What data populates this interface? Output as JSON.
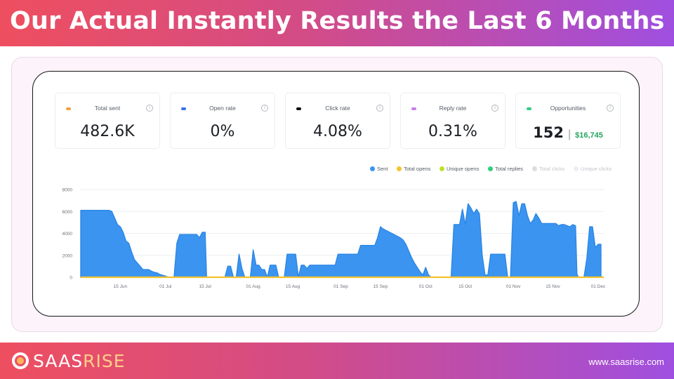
{
  "header": {
    "title": "Our Actual Instantly Results the Last 6 Months"
  },
  "cards": [
    {
      "label": "Total sent",
      "value": "482.6K",
      "dot_color": "#f0a24a",
      "icon": "info-icon"
    },
    {
      "label": "Open rate",
      "value": "0%",
      "dot_color": "#3b6ff0",
      "icon": "info-icon"
    },
    {
      "label": "Click rate",
      "value": "4.08%",
      "dot_color": "#111111",
      "icon": "info-icon"
    },
    {
      "label": "Reply rate",
      "value": "0.31%",
      "dot_color": "#c77de8",
      "icon": "info-icon"
    },
    {
      "label": "Opportunities",
      "value": "152",
      "separator": "|",
      "amount": "$16,745",
      "dot_color": "#2fcf7e",
      "icon": "info-icon"
    }
  ],
  "info_glyph": "i",
  "chart_data": {
    "type": "area",
    "legend": [
      {
        "name": "Sent",
        "color": "#3b95f0"
      },
      {
        "name": "Total opens",
        "color": "#f5c32c"
      },
      {
        "name": "Unique opens",
        "color": "#b8e22e"
      },
      {
        "name": "Total replies",
        "color": "#2fcf7e"
      },
      {
        "name": "Total clicks",
        "color": "#dcdde0"
      },
      {
        "name": "Unique clicks",
        "color": "#eceef0"
      }
    ],
    "legend_position": "top-right",
    "yticks": [
      "0",
      "2000",
      "4000",
      "6000",
      "8000"
    ],
    "ylim": [
      0,
      8000
    ],
    "xticks": [
      {
        "label": "15 Jun",
        "day": 14
      },
      {
        "label": "01 Jul",
        "day": 30
      },
      {
        "label": "15 Jul",
        "day": 44
      },
      {
        "label": "01 Aug",
        "day": 61
      },
      {
        "label": "15 Aug",
        "day": 75
      },
      {
        "label": "01 Sep",
        "day": 92
      },
      {
        "label": "15 Sep",
        "day": 106
      },
      {
        "label": "01 Oct",
        "day": 122
      },
      {
        "label": "15 Oct",
        "day": 136
      },
      {
        "label": "01 Nov",
        "day": 153
      },
      {
        "label": "15 Nov",
        "day": 167
      },
      {
        "label": "01 Dec",
        "day": 183
      }
    ],
    "xlim": [
      0,
      185
    ],
    "grid": true,
    "series": [
      {
        "name": "Sent",
        "points": [
          [
            0,
            6100
          ],
          [
            10,
            6100
          ],
          [
            11,
            6000
          ],
          [
            13,
            4800
          ],
          [
            14,
            4600
          ],
          [
            15,
            4100
          ],
          [
            16,
            3300
          ],
          [
            17,
            3100
          ],
          [
            18,
            2300
          ],
          [
            19,
            1600
          ],
          [
            20,
            1300
          ],
          [
            21,
            1000
          ],
          [
            22,
            700
          ],
          [
            23,
            700
          ],
          [
            24,
            700
          ],
          [
            25,
            550
          ],
          [
            26,
            450
          ],
          [
            27,
            400
          ],
          [
            28,
            250
          ],
          [
            30,
            100
          ],
          [
            31,
            0
          ],
          [
            32,
            0
          ],
          [
            33,
            0
          ],
          [
            34,
            3100
          ],
          [
            35,
            3900
          ],
          [
            41,
            3900
          ],
          [
            42,
            3600
          ],
          [
            43,
            4100
          ],
          [
            44,
            4100
          ],
          [
            44.5,
            0
          ],
          [
            51,
            0
          ],
          [
            52,
            1000
          ],
          [
            53,
            1000
          ],
          [
            54,
            0
          ],
          [
            55,
            0
          ],
          [
            56,
            2100
          ],
          [
            57,
            800
          ],
          [
            58,
            0
          ],
          [
            59,
            0
          ],
          [
            60,
            0
          ],
          [
            61,
            2500
          ],
          [
            62,
            1100
          ],
          [
            63,
            1100
          ],
          [
            64,
            700
          ],
          [
            65,
            700
          ],
          [
            66,
            0
          ],
          [
            67,
            1100
          ],
          [
            68,
            1100
          ],
          [
            69,
            1100
          ],
          [
            70,
            0
          ],
          [
            71,
            0
          ],
          [
            72,
            0
          ],
          [
            73,
            2100
          ],
          [
            75,
            2100
          ],
          [
            76,
            2100
          ],
          [
            77,
            0
          ],
          [
            78,
            1100
          ],
          [
            79,
            1100
          ],
          [
            80,
            800
          ],
          [
            81,
            1100
          ],
          [
            89,
            1100
          ],
          [
            90,
            1100
          ],
          [
            91,
            2100
          ],
          [
            92,
            2100
          ],
          [
            98,
            2100
          ],
          [
            99,
            2900
          ],
          [
            104,
            2900
          ],
          [
            105,
            3600
          ],
          [
            106,
            4600
          ],
          [
            107,
            4400
          ],
          [
            110,
            4000
          ],
          [
            113,
            3600
          ],
          [
            114,
            3400
          ],
          [
            115,
            3000
          ],
          [
            116,
            2400
          ],
          [
            117,
            1800
          ],
          [
            118,
            1300
          ],
          [
            119,
            900
          ],
          [
            120,
            500
          ],
          [
            121,
            200
          ],
          [
            122,
            900
          ],
          [
            123,
            200
          ],
          [
            124,
            0
          ],
          [
            131,
            0
          ],
          [
            132,
            4800
          ],
          [
            133,
            4800
          ],
          [
            134,
            4800
          ],
          [
            135,
            6200
          ],
          [
            136,
            4800
          ],
          [
            137,
            6700
          ],
          [
            138,
            6300
          ],
          [
            139,
            5800
          ],
          [
            140,
            6200
          ],
          [
            141,
            5800
          ],
          [
            142,
            2000
          ],
          [
            143,
            200
          ],
          [
            144,
            200
          ],
          [
            145,
            2100
          ],
          [
            150,
            2100
          ],
          [
            151,
            0
          ],
          [
            152,
            0
          ],
          [
            153,
            6800
          ],
          [
            154,
            6900
          ],
          [
            155,
            5600
          ],
          [
            156,
            6700
          ],
          [
            157,
            6700
          ],
          [
            158,
            5600
          ],
          [
            159,
            4900
          ],
          [
            160,
            5200
          ],
          [
            161,
            5800
          ],
          [
            162,
            5400
          ],
          [
            163,
            4900
          ],
          [
            164,
            4900
          ],
          [
            165,
            4900
          ],
          [
            168,
            4900
          ],
          [
            169,
            4700
          ],
          [
            170,
            4800
          ],
          [
            171,
            4800
          ],
          [
            172,
            4700
          ],
          [
            173,
            4600
          ],
          [
            174,
            4800
          ],
          [
            175,
            4700
          ],
          [
            175.5,
            300
          ],
          [
            176,
            0
          ],
          [
            178,
            0
          ],
          [
            179,
            1700
          ],
          [
            180,
            4600
          ],
          [
            181,
            4600
          ],
          [
            182,
            2700
          ],
          [
            183,
            3000
          ],
          [
            184,
            3000
          ]
        ]
      }
    ]
  },
  "footer": {
    "logo_a": "SAAS",
    "logo_b": "RISE",
    "site": "www.saasrise.com"
  }
}
